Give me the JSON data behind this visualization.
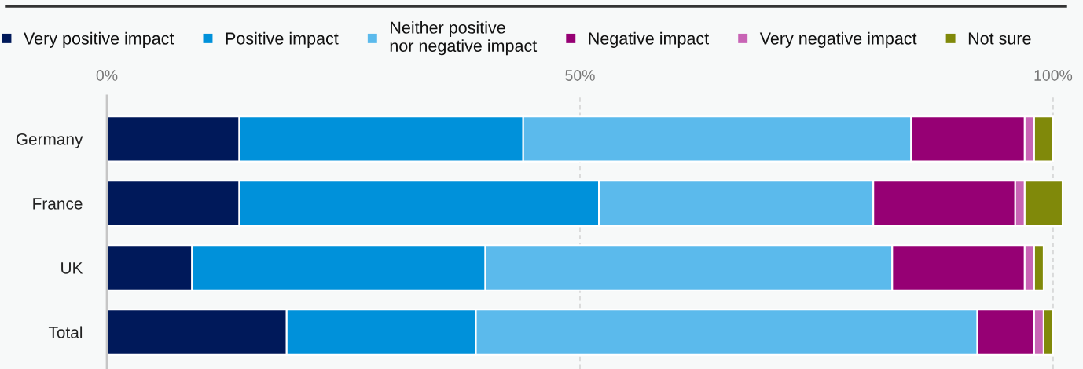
{
  "chart_data": {
    "type": "bar",
    "orientation": "horizontal",
    "stacked": true,
    "categories": [
      "Germany",
      "France",
      "UK",
      "Total"
    ],
    "series": [
      {
        "name": "Very positive impact",
        "color": "#00195a",
        "values": [
          14,
          14,
          9,
          19
        ]
      },
      {
        "name": "Positive impact",
        "color": "#0091da",
        "values": [
          30,
          38,
          31,
          20
        ]
      },
      {
        "name": "Neither positive\nnor negative impact",
        "color": "#5bbaec",
        "values": [
          41,
          29,
          43,
          53
        ]
      },
      {
        "name": "Negative impact",
        "color": "#960074",
        "values": [
          12,
          15,
          14,
          6
        ]
      },
      {
        "name": "Very negative impact",
        "color": "#c864b5",
        "values": [
          1,
          1,
          1,
          1
        ]
      },
      {
        "name": "Not sure",
        "color": "#80890a",
        "values": [
          2,
          4,
          1,
          1
        ]
      }
    ],
    "xlim": [
      0,
      101
    ],
    "xticks": [
      {
        "value": 0,
        "label": "0%"
      },
      {
        "value": 50,
        "label": "50%"
      },
      {
        "value": 100,
        "label": "100%"
      }
    ],
    "grid": "x",
    "legend": "top"
  }
}
